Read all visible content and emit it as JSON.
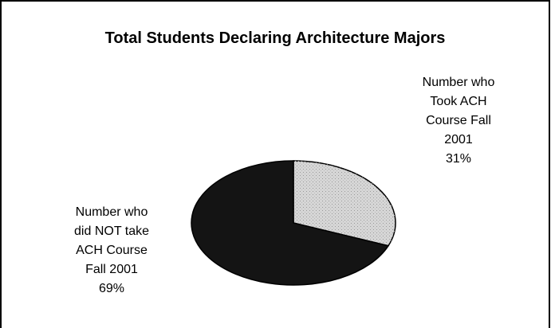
{
  "chart_data": {
    "type": "pie",
    "title": "Total Students Declaring Architecture Majors",
    "categories": [
      "Number who Took ACH Course Fall 2001",
      "Number who did NOT take ACH Course Fall 2001"
    ],
    "values": [
      31,
      69
    ],
    "value_labels": [
      "31%",
      "69%"
    ],
    "colors": [
      "#d6d6d6",
      "#141414"
    ]
  }
}
